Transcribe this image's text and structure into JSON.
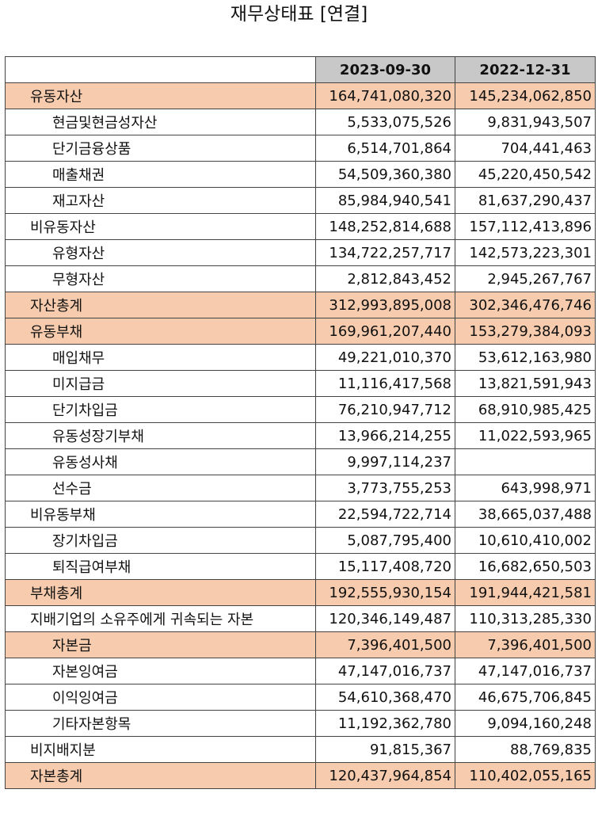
{
  "title": "재무상태표 [연결]",
  "columns": [
    "",
    "2023-09-30",
    "2022-12-31"
  ],
  "rows": [
    {
      "label": "유동자산",
      "v1": "164,741,080,320",
      "v2": "145,234,062,850",
      "indent": 0,
      "highlight": true
    },
    {
      "label": "현금및현금성자산",
      "v1": "5,533,075,526",
      "v2": "9,831,943,507",
      "indent": 1,
      "highlight": false
    },
    {
      "label": "단기금융상품",
      "v1": "6,514,701,864",
      "v2": "704,441,463",
      "indent": 1,
      "highlight": false
    },
    {
      "label": "매출채권",
      "v1": "54,509,360,380",
      "v2": "45,220,450,542",
      "indent": 1,
      "highlight": false
    },
    {
      "label": "재고자산",
      "v1": "85,984,940,541",
      "v2": "81,637,290,437",
      "indent": 1,
      "highlight": false
    },
    {
      "label": "비유동자산",
      "v1": "148,252,814,688",
      "v2": "157,112,413,896",
      "indent": 0,
      "highlight": false
    },
    {
      "label": "유형자산",
      "v1": "134,722,257,717",
      "v2": "142,573,223,301",
      "indent": 1,
      "highlight": false
    },
    {
      "label": "무형자산",
      "v1": "2,812,843,452",
      "v2": "2,945,267,767",
      "indent": 1,
      "highlight": false
    },
    {
      "label": "자산총계",
      "v1": "312,993,895,008",
      "v2": "302,346,476,746",
      "indent": 0,
      "highlight": true
    },
    {
      "label": "유동부채",
      "v1": "169,961,207,440",
      "v2": "153,279,384,093",
      "indent": 0,
      "highlight": true
    },
    {
      "label": "매입채무",
      "v1": "49,221,010,370",
      "v2": "53,612,163,980",
      "indent": 1,
      "highlight": false
    },
    {
      "label": "미지급금",
      "v1": "11,116,417,568",
      "v2": "13,821,591,943",
      "indent": 1,
      "highlight": false
    },
    {
      "label": "단기차입금",
      "v1": "76,210,947,712",
      "v2": "68,910,985,425",
      "indent": 1,
      "highlight": false
    },
    {
      "label": "유동성장기부채",
      "v1": "13,966,214,255",
      "v2": "11,022,593,965",
      "indent": 1,
      "highlight": false
    },
    {
      "label": "유동성사채",
      "v1": "9,997,114,237",
      "v2": "",
      "indent": 1,
      "highlight": false
    },
    {
      "label": "선수금",
      "v1": "3,773,755,253",
      "v2": "643,998,971",
      "indent": 1,
      "highlight": false
    },
    {
      "label": "비유동부채",
      "v1": "22,594,722,714",
      "v2": "38,665,037,488",
      "indent": 0,
      "highlight": false
    },
    {
      "label": "장기차입금",
      "v1": "5,087,795,400",
      "v2": "10,610,410,002",
      "indent": 1,
      "highlight": false
    },
    {
      "label": "퇴직급여부채",
      "v1": "15,117,408,720",
      "v2": "16,682,650,503",
      "indent": 1,
      "highlight": false
    },
    {
      "label": "부채총계",
      "v1": "192,555,930,154",
      "v2": "191,944,421,581",
      "indent": 0,
      "highlight": true
    },
    {
      "label": "지배기업의 소유주에게 귀속되는 자본",
      "v1": "120,346,149,487",
      "v2": "110,313,285,330",
      "indent": 0,
      "highlight": false
    },
    {
      "label": "자본금",
      "v1": "7,396,401,500",
      "v2": "7,396,401,500",
      "indent": 1,
      "highlight": true
    },
    {
      "label": "자본잉여금",
      "v1": "47,147,016,737",
      "v2": "47,147,016,737",
      "indent": 1,
      "highlight": false
    },
    {
      "label": "이익잉여금",
      "v1": "54,610,368,470",
      "v2": "46,675,706,845",
      "indent": 1,
      "highlight": false
    },
    {
      "label": "기타자본항목",
      "v1": "11,192,362,780",
      "v2": "9,094,160,248",
      "indent": 1,
      "highlight": false
    },
    {
      "label": "비지배지분",
      "v1": "91,815,367",
      "v2": "88,769,835",
      "indent": 0,
      "highlight": false
    },
    {
      "label": "자본총계",
      "v1": "120,437,964,854",
      "v2": "110,402,055,165",
      "indent": 0,
      "highlight": true
    }
  ],
  "colors": {
    "header_bg": "#c8c8c8",
    "highlight_bg": "#f7cbad",
    "border": "#444444"
  }
}
